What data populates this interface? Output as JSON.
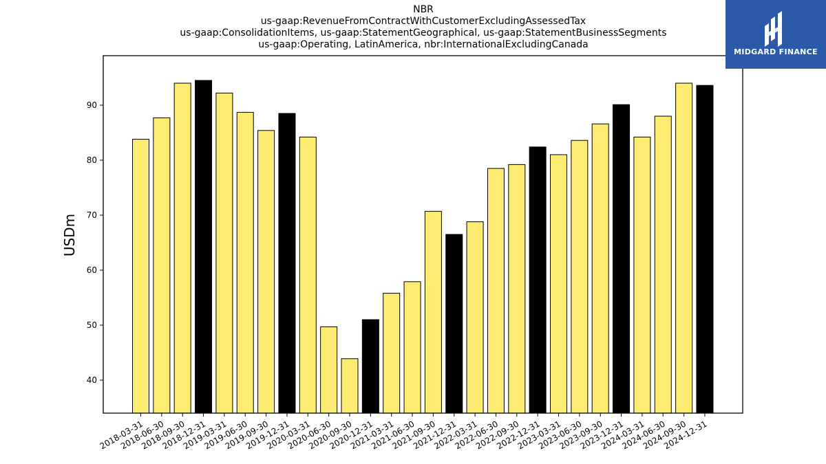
{
  "header": {
    "title_lines": [
      "NBR",
      "us-gaap:RevenueFromContractWithCustomerExcludingAssessedTax",
      "us-gaap:ConsolidationItems, us-gaap:StatementGeographical, us-gaap:StatementBusinessSegments",
      "us-gaap:Operating, LatinAmerica, nbr:InternationalExcludingCanada"
    ]
  },
  "logo": {
    "text": "MIDGARD FINANCE",
    "bg_color": "#2b5aa8",
    "icon": "midgard-logo-icon"
  },
  "chart_data": {
    "type": "bar",
    "title": "NBR",
    "xlabel": "",
    "ylabel": "USDm",
    "ylim": [
      34,
      99
    ],
    "yticks": [
      40,
      50,
      60,
      70,
      80,
      90
    ],
    "grid": false,
    "colors": {
      "quarter": "#fdec71",
      "year_end": "#000000",
      "edge": "#000000"
    },
    "categories": [
      "2018-03-31",
      "2018-06-30",
      "2018-09-30",
      "2018-12-31",
      "2019-03-31",
      "2019-06-30",
      "2019-09-30",
      "2019-12-31",
      "2020-03-31",
      "2020-06-30",
      "2020-09-30",
      "2020-12-31",
      "2021-03-31",
      "2021-06-30",
      "2021-09-30",
      "2021-12-31",
      "2022-03-31",
      "2022-06-30",
      "2022-09-30",
      "2022-12-31",
      "2023-03-31",
      "2023-06-30",
      "2023-09-30",
      "2023-12-31",
      "2024-03-31",
      "2024-06-30",
      "2024-09-30",
      "2024-12-31"
    ],
    "values": [
      83.8,
      87.7,
      94.0,
      94.5,
      92.2,
      88.7,
      85.4,
      88.5,
      84.2,
      49.7,
      43.9,
      51.0,
      55.8,
      57.9,
      70.7,
      66.5,
      68.8,
      78.5,
      79.2,
      82.4,
      81.0,
      83.6,
      86.6,
      90.1,
      84.2,
      88.0,
      94.0,
      93.6
    ]
  }
}
